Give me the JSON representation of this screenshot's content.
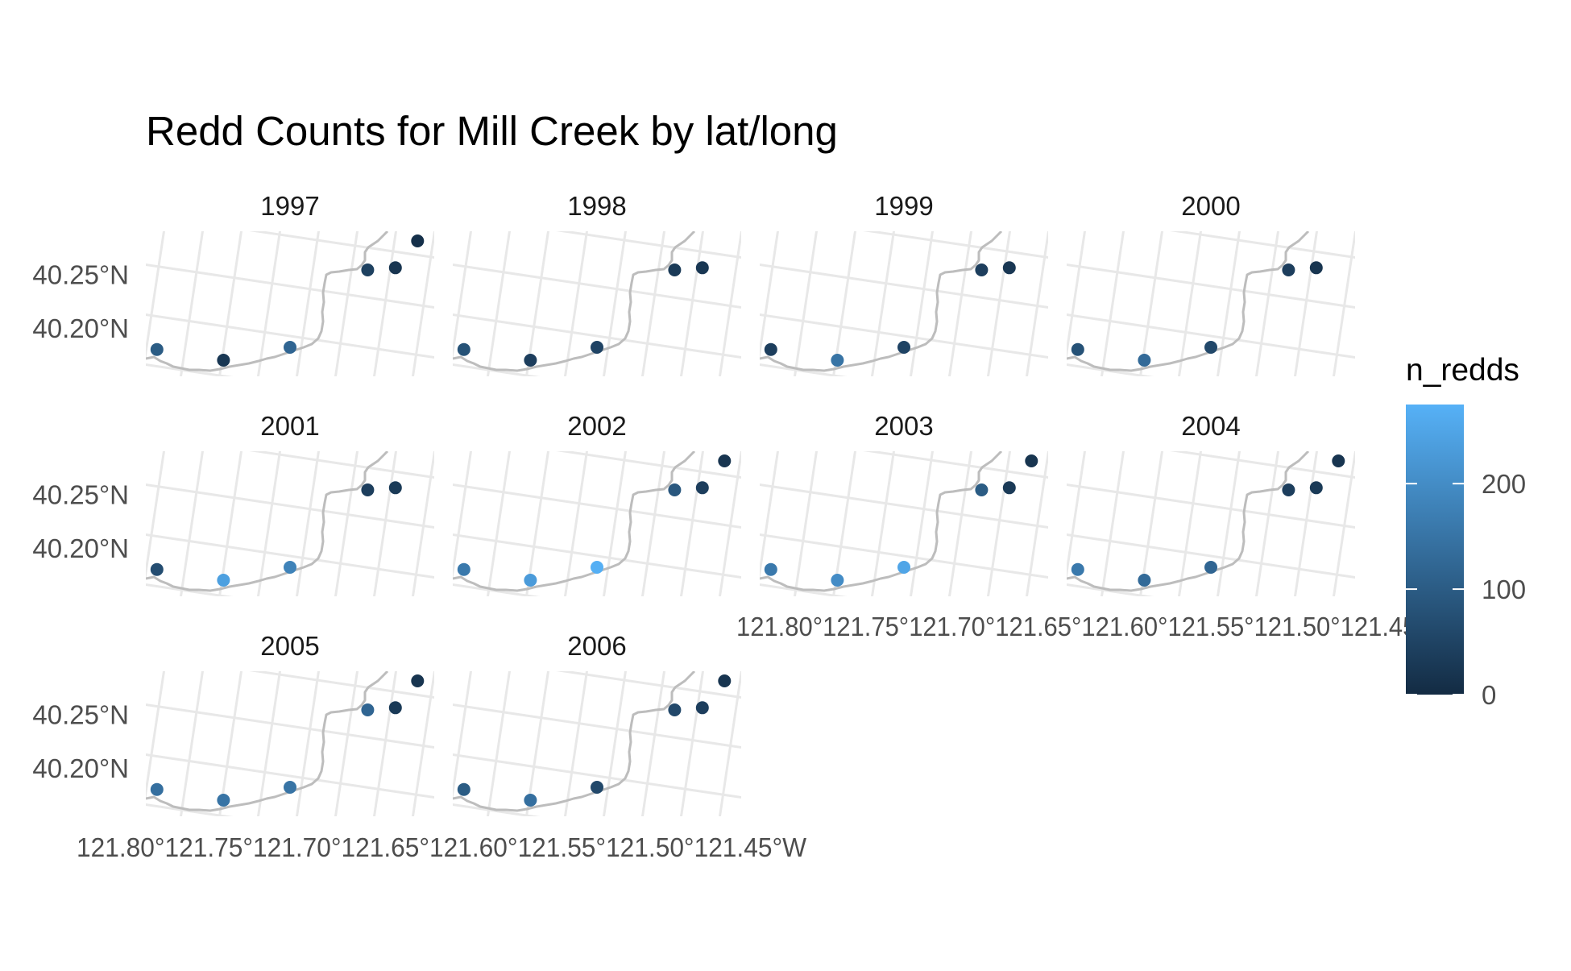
{
  "chart_data": {
    "type": "scatter",
    "title": "Redd Counts for Mill Creek by lat/long",
    "facet_variable": "year",
    "panels": [
      "1997",
      "1998",
      "1999",
      "2000",
      "2001",
      "2002",
      "2003",
      "2004",
      "2005",
      "2006"
    ],
    "y_ticks": [
      "40.25°N",
      "40.20°N"
    ],
    "y_tick_values": [
      40.25,
      40.2
    ],
    "x_tick_values": [
      -121.8,
      -121.75,
      -121.7,
      -121.65,
      -121.6,
      -121.55,
      -121.5,
      -121.45
    ],
    "x_tick_labels_bottom": "121.80°121.75°121.70°121.65°121.60°121.55°121.50°121.45°W",
    "sites": [
      {
        "lon": -121.79,
        "lat": 40.18
      },
      {
        "lon": -121.73,
        "lat": 40.17
      },
      {
        "lon": -121.67,
        "lat": 40.182
      },
      {
        "lon": -121.6,
        "lat": 40.254
      },
      {
        "lon": -121.575,
        "lat": 40.256
      },
      {
        "lon": -121.555,
        "lat": 40.281
      }
    ],
    "series": [
      {
        "name": "1997",
        "values": [
          100,
          25,
          120,
          45,
          20,
          10
        ]
      },
      {
        "name": "1998",
        "values": [
          80,
          40,
          50,
          30,
          25,
          null
        ]
      },
      {
        "name": "1999",
        "values": [
          40,
          150,
          50,
          40,
          25,
          null
        ]
      },
      {
        "name": "2000",
        "values": [
          80,
          130,
          60,
          40,
          20,
          null
        ]
      },
      {
        "name": "2001",
        "values": [
          70,
          240,
          180,
          40,
          30,
          null
        ]
      },
      {
        "name": "2002",
        "values": [
          160,
          230,
          270,
          90,
          40,
          20
        ]
      },
      {
        "name": "2003",
        "values": [
          160,
          200,
          250,
          100,
          30,
          20
        ]
      },
      {
        "name": "2004",
        "values": [
          160,
          130,
          120,
          40,
          30,
          20
        ]
      },
      {
        "name": "2005",
        "values": [
          140,
          150,
          150,
          120,
          30,
          20
        ]
      },
      {
        "name": "2006",
        "values": [
          100,
          140,
          60,
          60,
          40,
          20
        ]
      }
    ],
    "legend": {
      "title": "n_redds",
      "ticks": [
        0,
        100,
        200
      ],
      "min": 0,
      "max": 275,
      "low_color": "#132B43",
      "high_color": "#56B1F7",
      "placement": "right"
    },
    "colors": {
      "river": "#bdbdbd",
      "graticule": "#e8e8e8",
      "text": "#000000",
      "axis_text": "#4d4d4d"
    },
    "grid": true
  }
}
